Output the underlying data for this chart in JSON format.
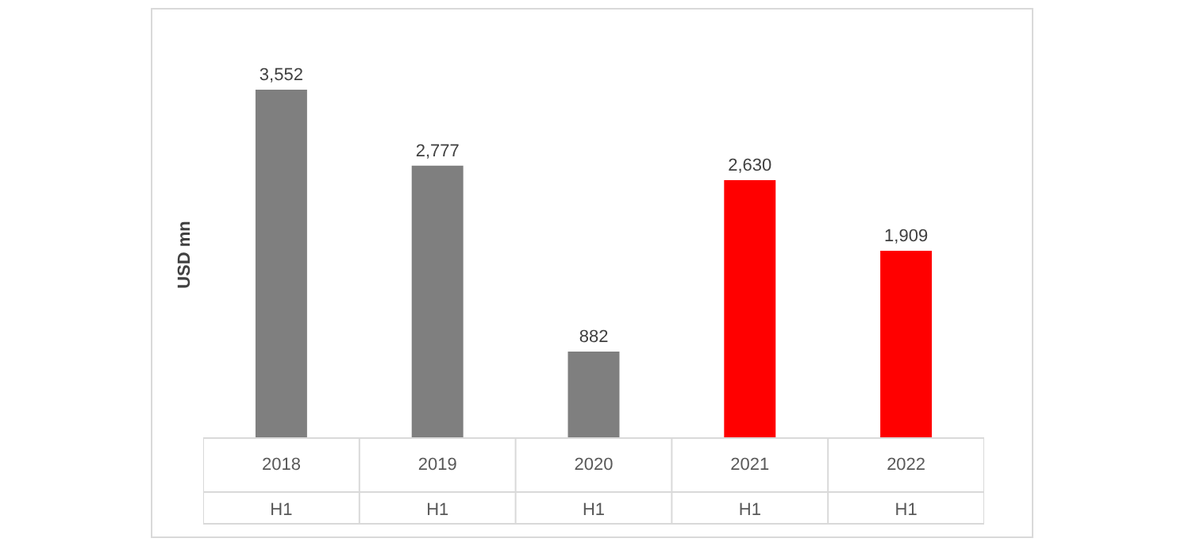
{
  "chart_data": {
    "type": "bar",
    "ylabel": "USD mn",
    "categories": [
      "2018\nH1",
      "2019\nH1",
      "2020\nH1",
      "2021\nH1",
      "2022\nH1"
    ],
    "values": [
      3552,
      2777,
      882,
      2630,
      1909
    ],
    "colors": [
      "#7f7f7f",
      "#7f7f7f",
      "#7f7f7f",
      "#ff0000",
      "#ff0000"
    ],
    "value_labels": [
      "3,552",
      "2,777",
      "882",
      "2,630",
      "1,909"
    ]
  }
}
